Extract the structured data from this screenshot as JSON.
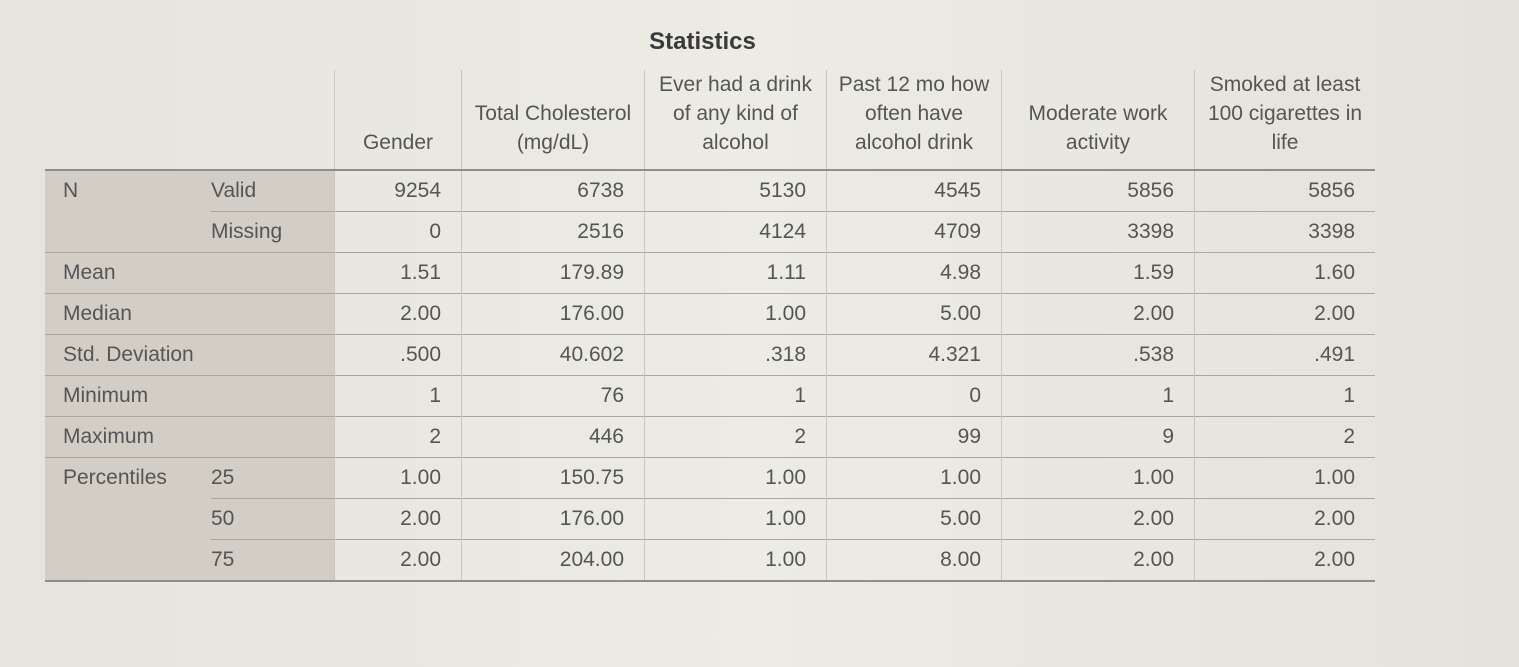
{
  "title": "Statistics",
  "columns": [
    "Gender",
    "Total Cholesterol (mg/dL)",
    "Ever had a drink of any kind of alcohol",
    "Past 12 mo how often have alcohol drink",
    "Moderate work activity",
    "Smoked at least 100 cigarettes in life"
  ],
  "rows": [
    {
      "label": "N",
      "sub": "Valid",
      "values": [
        "9254",
        "6738",
        "5130",
        "4545",
        "5856",
        "5856"
      ]
    },
    {
      "label": "",
      "sub": "Missing",
      "values": [
        "0",
        "2516",
        "4124",
        "4709",
        "3398",
        "3398"
      ]
    },
    {
      "label": "Mean",
      "sub": "",
      "values": [
        "1.51",
        "179.89",
        "1.11",
        "4.98",
        "1.59",
        "1.60"
      ]
    },
    {
      "label": "Median",
      "sub": "",
      "values": [
        "2.00",
        "176.00",
        "1.00",
        "5.00",
        "2.00",
        "2.00"
      ]
    },
    {
      "label": "Std. Deviation",
      "sub": "",
      "values": [
        ".500",
        "40.602",
        ".318",
        "4.321",
        ".538",
        ".491"
      ]
    },
    {
      "label": "Minimum",
      "sub": "",
      "values": [
        "1",
        "76",
        "1",
        "0",
        "1",
        "1"
      ]
    },
    {
      "label": "Maximum",
      "sub": "",
      "values": [
        "2",
        "446",
        "2",
        "99",
        "9",
        "2"
      ]
    },
    {
      "label": "Percentiles",
      "sub": "25",
      "values": [
        "1.00",
        "150.75",
        "1.00",
        "1.00",
        "1.00",
        "1.00"
      ]
    },
    {
      "label": "",
      "sub": "50",
      "values": [
        "2.00",
        "176.00",
        "1.00",
        "5.00",
        "2.00",
        "2.00"
      ]
    },
    {
      "label": "",
      "sub": "75",
      "values": [
        "2.00",
        "204.00",
        "1.00",
        "8.00",
        "2.00",
        "2.00"
      ]
    }
  ]
}
